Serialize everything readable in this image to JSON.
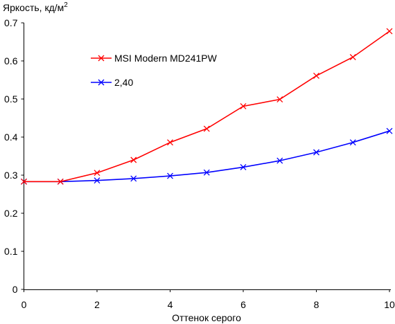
{
  "chart_data": {
    "type": "line",
    "title": "",
    "ylabel": "Яркость, кд/м",
    "ylabel_superscript": "2",
    "xlabel": "Оттенок серого",
    "xlim": [
      0,
      10
    ],
    "ylim": [
      0,
      0.7
    ],
    "x_ticks": [
      0,
      2,
      4,
      6,
      8,
      10
    ],
    "y_ticks": [
      0,
      0.1,
      0.2,
      0.3,
      0.4,
      0.5,
      0.6,
      0.7
    ],
    "y_tick_labels": [
      "0",
      "0.1",
      "0.2",
      "0.3",
      "0.4",
      "0.5",
      "0.6",
      "0.7"
    ],
    "x_tick_labels": [
      "0",
      "2",
      "4",
      "6",
      "8",
      "10"
    ],
    "grid": false,
    "legend_position": "top-left",
    "x": [
      0,
      1,
      2,
      3,
      4,
      5,
      6,
      7,
      8,
      9,
      10
    ],
    "series": [
      {
        "name": "MSI Modern MD241PW",
        "color": "#ff0000",
        "marker": "x",
        "values": [
          0.283,
          0.283,
          0.306,
          0.34,
          0.386,
          0.422,
          0.481,
          0.499,
          0.561,
          0.61,
          0.678
        ]
      },
      {
        "name": "2,40",
        "color": "#0000ff",
        "marker": "x",
        "values": [
          0.283,
          0.283,
          0.286,
          0.291,
          0.298,
          0.307,
          0.321,
          0.338,
          0.36,
          0.386,
          0.416
        ]
      }
    ]
  }
}
